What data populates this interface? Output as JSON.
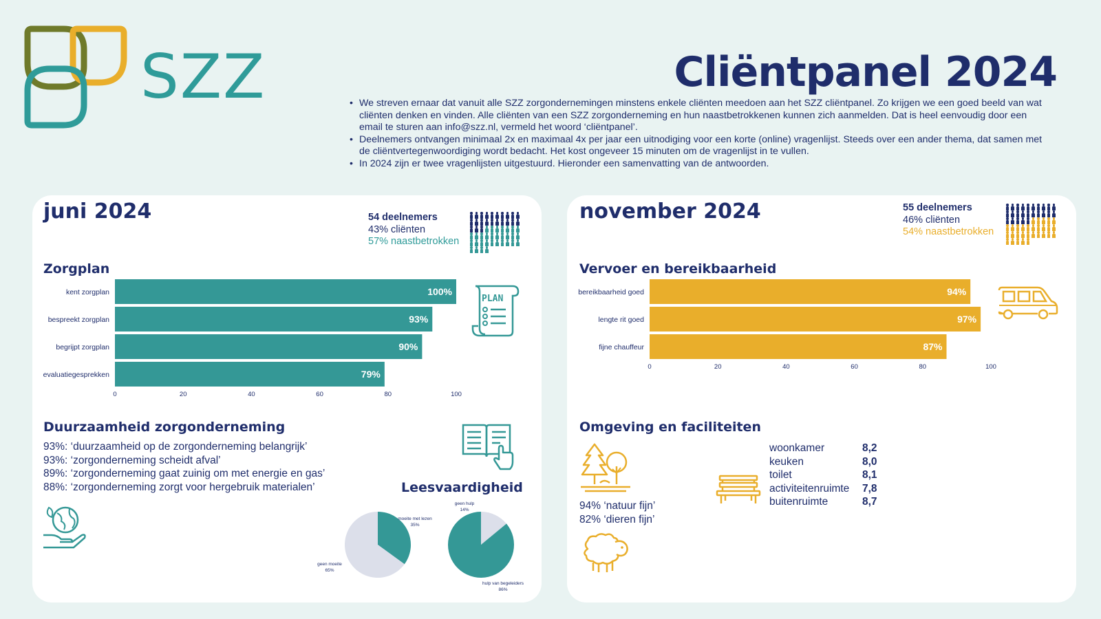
{
  "brand": {
    "name": "SZZ",
    "colors": {
      "olive": "#6f7a2a",
      "gold": "#e9ae2b",
      "teal": "#2f9b99",
      "navy": "#1f2d6b"
    }
  },
  "title": "Cliëntpanel 2024",
  "intro": [
    "We streven ernaar dat vanuit alle SZZ zorgondernemingen minstens enkele cliënten meedoen aan het SZZ cliëntpanel. Zo krijgen we een goed beeld van wat cliënten denken en vinden. Alle cliënten van een SZZ zorgonderneming en hun naastbetrokkenen kunnen zich aanmelden. Dat is heel eenvoudig door een email te sturen aan info@szz.nl, vermeld het woord ‘cliëntpanel’.",
    "Deelnemers ontvangen minimaal 2x en maximaal 4x per jaar een uitnodiging voor een korte (online) vragenlijst. Steeds over een ander thema, dat samen met de cliëntvertegenwoordiging wordt bedacht. Het kost ongeveer 15 minuten om de vragenlijst in te vullen.",
    "In 2024 zijn er twee vragenlijsten uitgestuurd. Hieronder een samenvatting van de antwoorden."
  ],
  "june": {
    "title": "juni 2024",
    "participants": "54 deelnemers",
    "clients": "43% cliënten",
    "relatives": "57% naastbetrokken",
    "people_total": 54,
    "people_clients": 23,
    "zorgplan_title": "Zorgplan",
    "plan_icon_text": "PLAN",
    "sustain_title": "Duurzaamheid zorgonderneming",
    "sustain_lines": [
      "93%: ‘duurzaamheid op de zorgonderneming belangrijk’",
      "93%: ‘zorgonderneming scheidt afval’",
      "89%: ‘zorgonderneming gaat zuinig om met energie en gas’",
      "88%: ‘zorgonderneming zorgt voor hergebruik materialen’"
    ],
    "reading_title": "Leesvaardigheid"
  },
  "november": {
    "title": "november 2024",
    "participants": "55 deelnemers",
    "clients": "46% cliënten",
    "relatives": "54% naastbetrokken",
    "people_total": 55,
    "people_clients": 25,
    "transport_title": "Vervoer en bereikbaarheid",
    "env_title": "Omgeving en faciliteiten",
    "env_lines": [
      "94% ‘natuur fijn’",
      "82% ‘dieren fijn’"
    ],
    "scores": [
      {
        "label": "woonkamer",
        "value": "8,2"
      },
      {
        "label": "keuken",
        "value": "8,0"
      },
      {
        "label": "toilet",
        "value": "8,1"
      },
      {
        "label": "activiteitenruimte",
        "value": "7,8"
      },
      {
        "label": "buitenruimte",
        "value": "8,7"
      }
    ]
  },
  "chart_data": [
    {
      "type": "bar",
      "title": "Zorgplan",
      "categories": [
        "kent zorgplan",
        "bespreekt zorgplan",
        "begrijpt zorgplan",
        "evaluatiegesprekken"
      ],
      "values": [
        100,
        93,
        90,
        79
      ],
      "value_labels": [
        "100%",
        "93%",
        "90%",
        "79%"
      ],
      "xlim": [
        0,
        100
      ],
      "ticks": [
        "0",
        "20",
        "40",
        "60",
        "80",
        "100"
      ],
      "color": "#349896"
    },
    {
      "type": "bar",
      "title": "Vervoer en bereikbaarheid",
      "categories": [
        "bereikbaarheid goed",
        "lengte rit goed",
        "fijne chauffeur"
      ],
      "values": [
        94,
        97,
        87
      ],
      "value_labels": [
        "94%",
        "97%",
        "87%"
      ],
      "xlim": [
        0,
        100
      ],
      "ticks": [
        "0",
        "20",
        "40",
        "60",
        "80",
        "100"
      ],
      "color": "#e9ae2b"
    },
    {
      "type": "pie",
      "slices": [
        {
          "label": "moeite met lezen",
          "pct_label": "35%",
          "value": 35,
          "color": "#349896"
        },
        {
          "label": "geen moeite",
          "pct_label": "65%",
          "value": 65,
          "color": "#dcdfea"
        }
      ]
    },
    {
      "type": "pie",
      "slices": [
        {
          "label": "geen hulp",
          "pct_label": "14%",
          "value": 14,
          "color": "#dcdfea"
        },
        {
          "label": "hulp van begeleiders",
          "pct_label": "86%",
          "value": 86,
          "color": "#349896"
        }
      ]
    }
  ]
}
